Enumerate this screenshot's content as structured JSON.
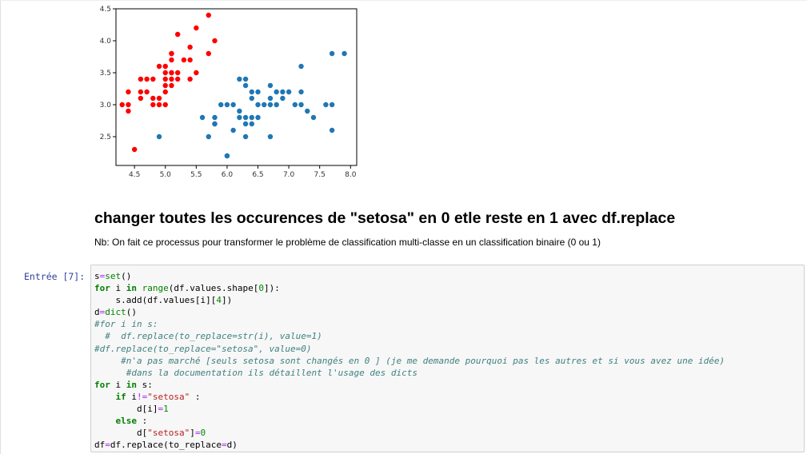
{
  "chart_data": {
    "type": "scatter",
    "xlim": [
      4.2,
      8.1
    ],
    "ylim": [
      2.05,
      4.5
    ],
    "xticks": [
      "4.5",
      "5.0",
      "5.5",
      "6.0",
      "6.5",
      "7.0",
      "7.5",
      "8.0"
    ],
    "yticks": [
      "2.5",
      "3.0",
      "3.5",
      "4.0",
      "4.5"
    ],
    "grid": false,
    "series": [
      {
        "color": "#ff0000",
        "x": [
          4.3,
          4.4,
          4.4,
          4.4,
          4.5,
          4.6,
          4.6,
          4.6,
          4.7,
          4.7,
          4.8,
          4.8,
          4.8,
          4.9,
          4.9,
          4.9,
          5.0,
          5.0,
          5.0,
          5.0,
          5.0,
          5.0,
          5.1,
          5.1,
          5.1,
          5.1,
          5.1,
          5.1,
          5.1,
          5.2,
          5.2,
          5.2,
          5.3,
          5.4,
          5.4,
          5.4,
          5.5,
          5.5,
          5.7,
          5.7,
          5.8,
          5.8
        ],
        "y": [
          3.0,
          2.9,
          3.0,
          3.2,
          2.3,
          3.1,
          3.2,
          3.4,
          3.2,
          3.4,
          3.0,
          3.1,
          3.4,
          3.0,
          3.1,
          3.6,
          3.0,
          3.2,
          3.3,
          3.4,
          3.5,
          3.6,
          3.3,
          3.4,
          3.5,
          3.7,
          3.8,
          3.5,
          3.8,
          3.4,
          3.5,
          4.1,
          3.7,
          3.4,
          3.7,
          3.9,
          3.5,
          4.2,
          3.8,
          4.4,
          4.0,
          2.7
        ]
      },
      {
        "color": "#1f77b4",
        "x": [
          4.9,
          5.6,
          5.7,
          5.8,
          5.8,
          5.9,
          6.0,
          6.0,
          6.0,
          6.1,
          6.1,
          6.2,
          6.2,
          6.2,
          6.3,
          6.3,
          6.3,
          6.3,
          6.3,
          6.4,
          6.4,
          6.4,
          6.4,
          6.5,
          6.5,
          6.5,
          6.6,
          6.7,
          6.7,
          6.7,
          6.7,
          6.8,
          6.8,
          6.9,
          6.9,
          7.0,
          7.1,
          7.2,
          7.2,
          7.2,
          7.3,
          7.4,
          7.6,
          7.7,
          7.7,
          7.7,
          7.9
        ],
        "y": [
          2.5,
          2.8,
          2.5,
          2.7,
          2.8,
          3.0,
          2.2,
          3.0,
          2.2,
          2.6,
          3.0,
          2.8,
          2.9,
          3.4,
          2.5,
          2.7,
          2.8,
          3.3,
          3.4,
          2.7,
          2.8,
          3.1,
          3.2,
          2.8,
          3.0,
          3.2,
          3.0,
          2.5,
          3.0,
          3.1,
          3.3,
          3.0,
          3.2,
          3.1,
          3.2,
          3.2,
          3.0,
          3.0,
          3.2,
          3.6,
          2.9,
          2.8,
          3.0,
          2.6,
          3.0,
          3.8,
          3.8
        ]
      }
    ]
  },
  "markdown": {
    "heading": "changer toutes les occurences de \"setosa\" en 0 etle reste en 1 avec df.replace",
    "note": "Nb: On fait ce processus pour transformer le problème de classification multi-classe en un classification binaire (0 ou 1)"
  },
  "cell": {
    "prompt": "Entrée [7]:",
    "code_lines": [
      "s=set()",
      "for i in range(df.values.shape[0]):",
      "    s.add(df.values[i][4])",
      "d=dict()",
      "#for i in s:",
      "  #  df.replace(to_replace=str(i), value=1)",
      "#df.replace(to_replace=\"setosa\", value=0)",
      "     #n'a pas marché [seuls setosa sont changés en 0 ] (je me demande pourquoi pas les autres et si vous avez une idée)",
      "      #dans la documentation ils détaillent l'usage des dicts",
      "for i in s:",
      "    if i!=\"setosa\" :",
      "        d[i]=1",
      "    else :",
      "        d[\"setosa\"]=0",
      "df=df.replace(to_replace=d)"
    ]
  }
}
